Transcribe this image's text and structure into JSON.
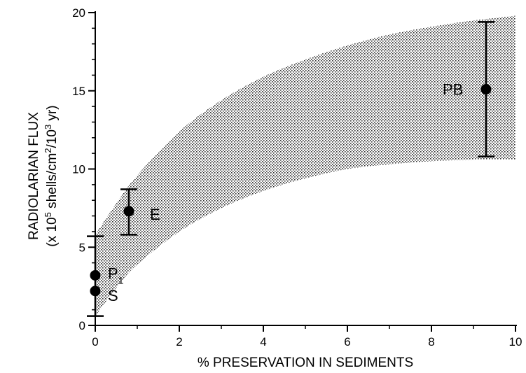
{
  "chart_data": {
    "type": "scatter",
    "xlabel": "% PRESERVATION IN SEDIMENTS",
    "ylabel_line1": "RADIOLARIAN FLUX",
    "ylabel_line2_parts": [
      "(x 10",
      "5",
      " shells/cm",
      "2",
      "/10",
      "3",
      " yr)"
    ],
    "xlim": [
      0,
      10
    ],
    "ylim": [
      0,
      20
    ],
    "x_ticks": [
      "0",
      "2",
      "4",
      "6",
      "8",
      "10"
    ],
    "y_ticks": [
      "0",
      "5",
      "10",
      "15",
      "20"
    ],
    "grid": false,
    "points": [
      {
        "label": "S",
        "label_sub": "",
        "x": 0.0,
        "y": 2.2,
        "err_low": 0.6,
        "err_high": 5.7
      },
      {
        "label": "P",
        "label_sub": "1",
        "x": 0.0,
        "y": 3.2
      },
      {
        "label": "E",
        "label_sub": "",
        "x": 0.8,
        "y": 7.3,
        "err_low": 5.8,
        "err_high": 8.7
      },
      {
        "label": "PB",
        "label_sub": "",
        "x": 9.3,
        "y": 15.1,
        "err_low": 10.8,
        "err_high": 19.4
      }
    ],
    "band": {
      "description": "shaded envelope",
      "upper": [
        [
          0,
          5.8
        ],
        [
          0.5,
          7.8
        ],
        [
          1,
          9.6
        ],
        [
          2,
          12.4
        ],
        [
          3,
          14.4
        ],
        [
          4,
          15.9
        ],
        [
          5,
          17.0
        ],
        [
          6,
          17.9
        ],
        [
          7,
          18.6
        ],
        [
          8,
          19.1
        ],
        [
          9,
          19.5
        ],
        [
          10,
          19.8
        ]
      ],
      "lower": [
        [
          0,
          0.6
        ],
        [
          0.5,
          2.4
        ],
        [
          1,
          3.9
        ],
        [
          2,
          6.0
        ],
        [
          3,
          7.5
        ],
        [
          4,
          8.6
        ],
        [
          5,
          9.4
        ],
        [
          6,
          10.0
        ],
        [
          7,
          10.3
        ],
        [
          8,
          10.5
        ],
        [
          9,
          10.6
        ],
        [
          10,
          10.6
        ]
      ]
    }
  }
}
